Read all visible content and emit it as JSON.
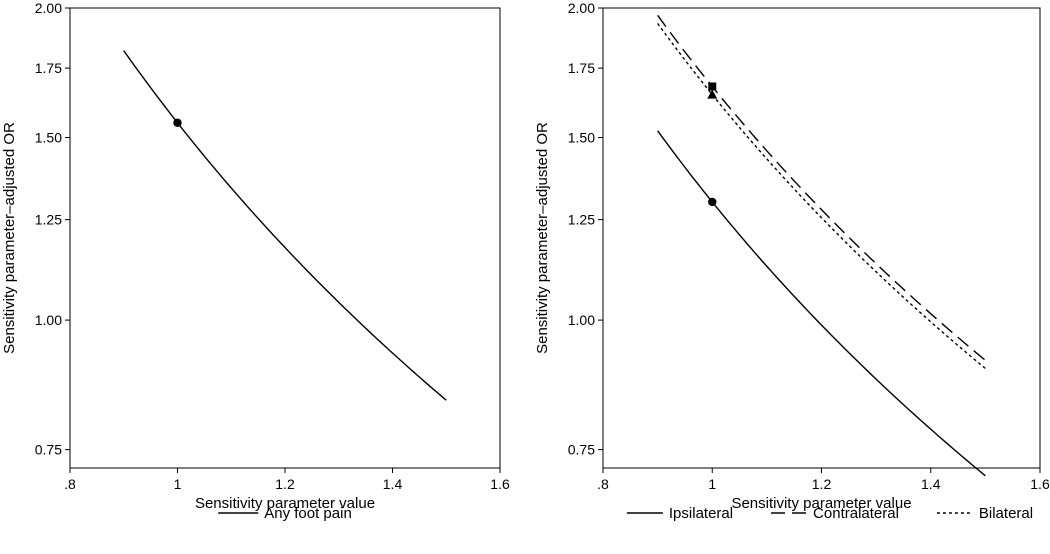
{
  "chart_data": [
    {
      "type": "line",
      "xlabel": "Sensitivity parameter value",
      "ylabel": "Sensitivity parameter–adjusted OR",
      "xticks": [
        ".8",
        "1",
        "1.2",
        "1.4",
        "1.6"
      ],
      "xtick_values": [
        0.8,
        1.0,
        1.2,
        1.4,
        1.6
      ],
      "yticks": [
        "0.75",
        "1.00",
        "1.25",
        "1.50",
        "1.75",
        "2.00"
      ],
      "ytick_values": [
        0.75,
        1.0,
        1.25,
        1.5,
        1.75,
        2.0
      ],
      "xlim": [
        0.8,
        1.6
      ],
      "ylim": [
        0.72,
        2.0
      ],
      "yscale": "log",
      "series": [
        {
          "name": "Any foot pain",
          "style": "solid",
          "x_start": 0.9,
          "x_end": 1.5,
          "y_at_1": 1.55,
          "exponent": 1.52,
          "marker": "circle"
        }
      ],
      "legend": [
        {
          "label": "Any foot pain",
          "style": "solid"
        }
      ]
    },
    {
      "type": "line",
      "xlabel": "Sensitivity parameter value",
      "ylabel": "Sensitivity parameter–adjusted OR",
      "xticks": [
        ".8",
        "1",
        "1.2",
        "1.4",
        "1.6"
      ],
      "xtick_values": [
        0.8,
        1.0,
        1.2,
        1.4,
        1.6
      ],
      "yticks": [
        "0.75",
        "1.00",
        "1.25",
        "1.50",
        "1.75",
        "2.00"
      ],
      "ytick_values": [
        0.75,
        1.0,
        1.25,
        1.5,
        1.75,
        2.0
      ],
      "xlim": [
        0.8,
        1.6
      ],
      "ylim": [
        0.72,
        2.0
      ],
      "yscale": "log",
      "series": [
        {
          "name": "Ipsilateral",
          "style": "solid",
          "x_start": 0.9,
          "x_end": 1.5,
          "y_at_1": 1.3,
          "exponent": 1.5,
          "marker": "circle"
        },
        {
          "name": "Contralateral",
          "style": "dashed",
          "x_start": 0.9,
          "x_end": 1.5,
          "y_at_1": 1.68,
          "exponent": 1.5,
          "marker": "square"
        },
        {
          "name": "Bilateral",
          "style": "dotted",
          "x_start": 0.9,
          "x_end": 1.5,
          "y_at_1": 1.65,
          "exponent": 1.5,
          "marker": "triangle"
        }
      ],
      "legend": [
        {
          "label": "Ipsilateral",
          "style": "solid"
        },
        {
          "label": "Contralateral",
          "style": "dashed"
        },
        {
          "label": "Bilateral",
          "style": "dotted"
        }
      ]
    }
  ]
}
